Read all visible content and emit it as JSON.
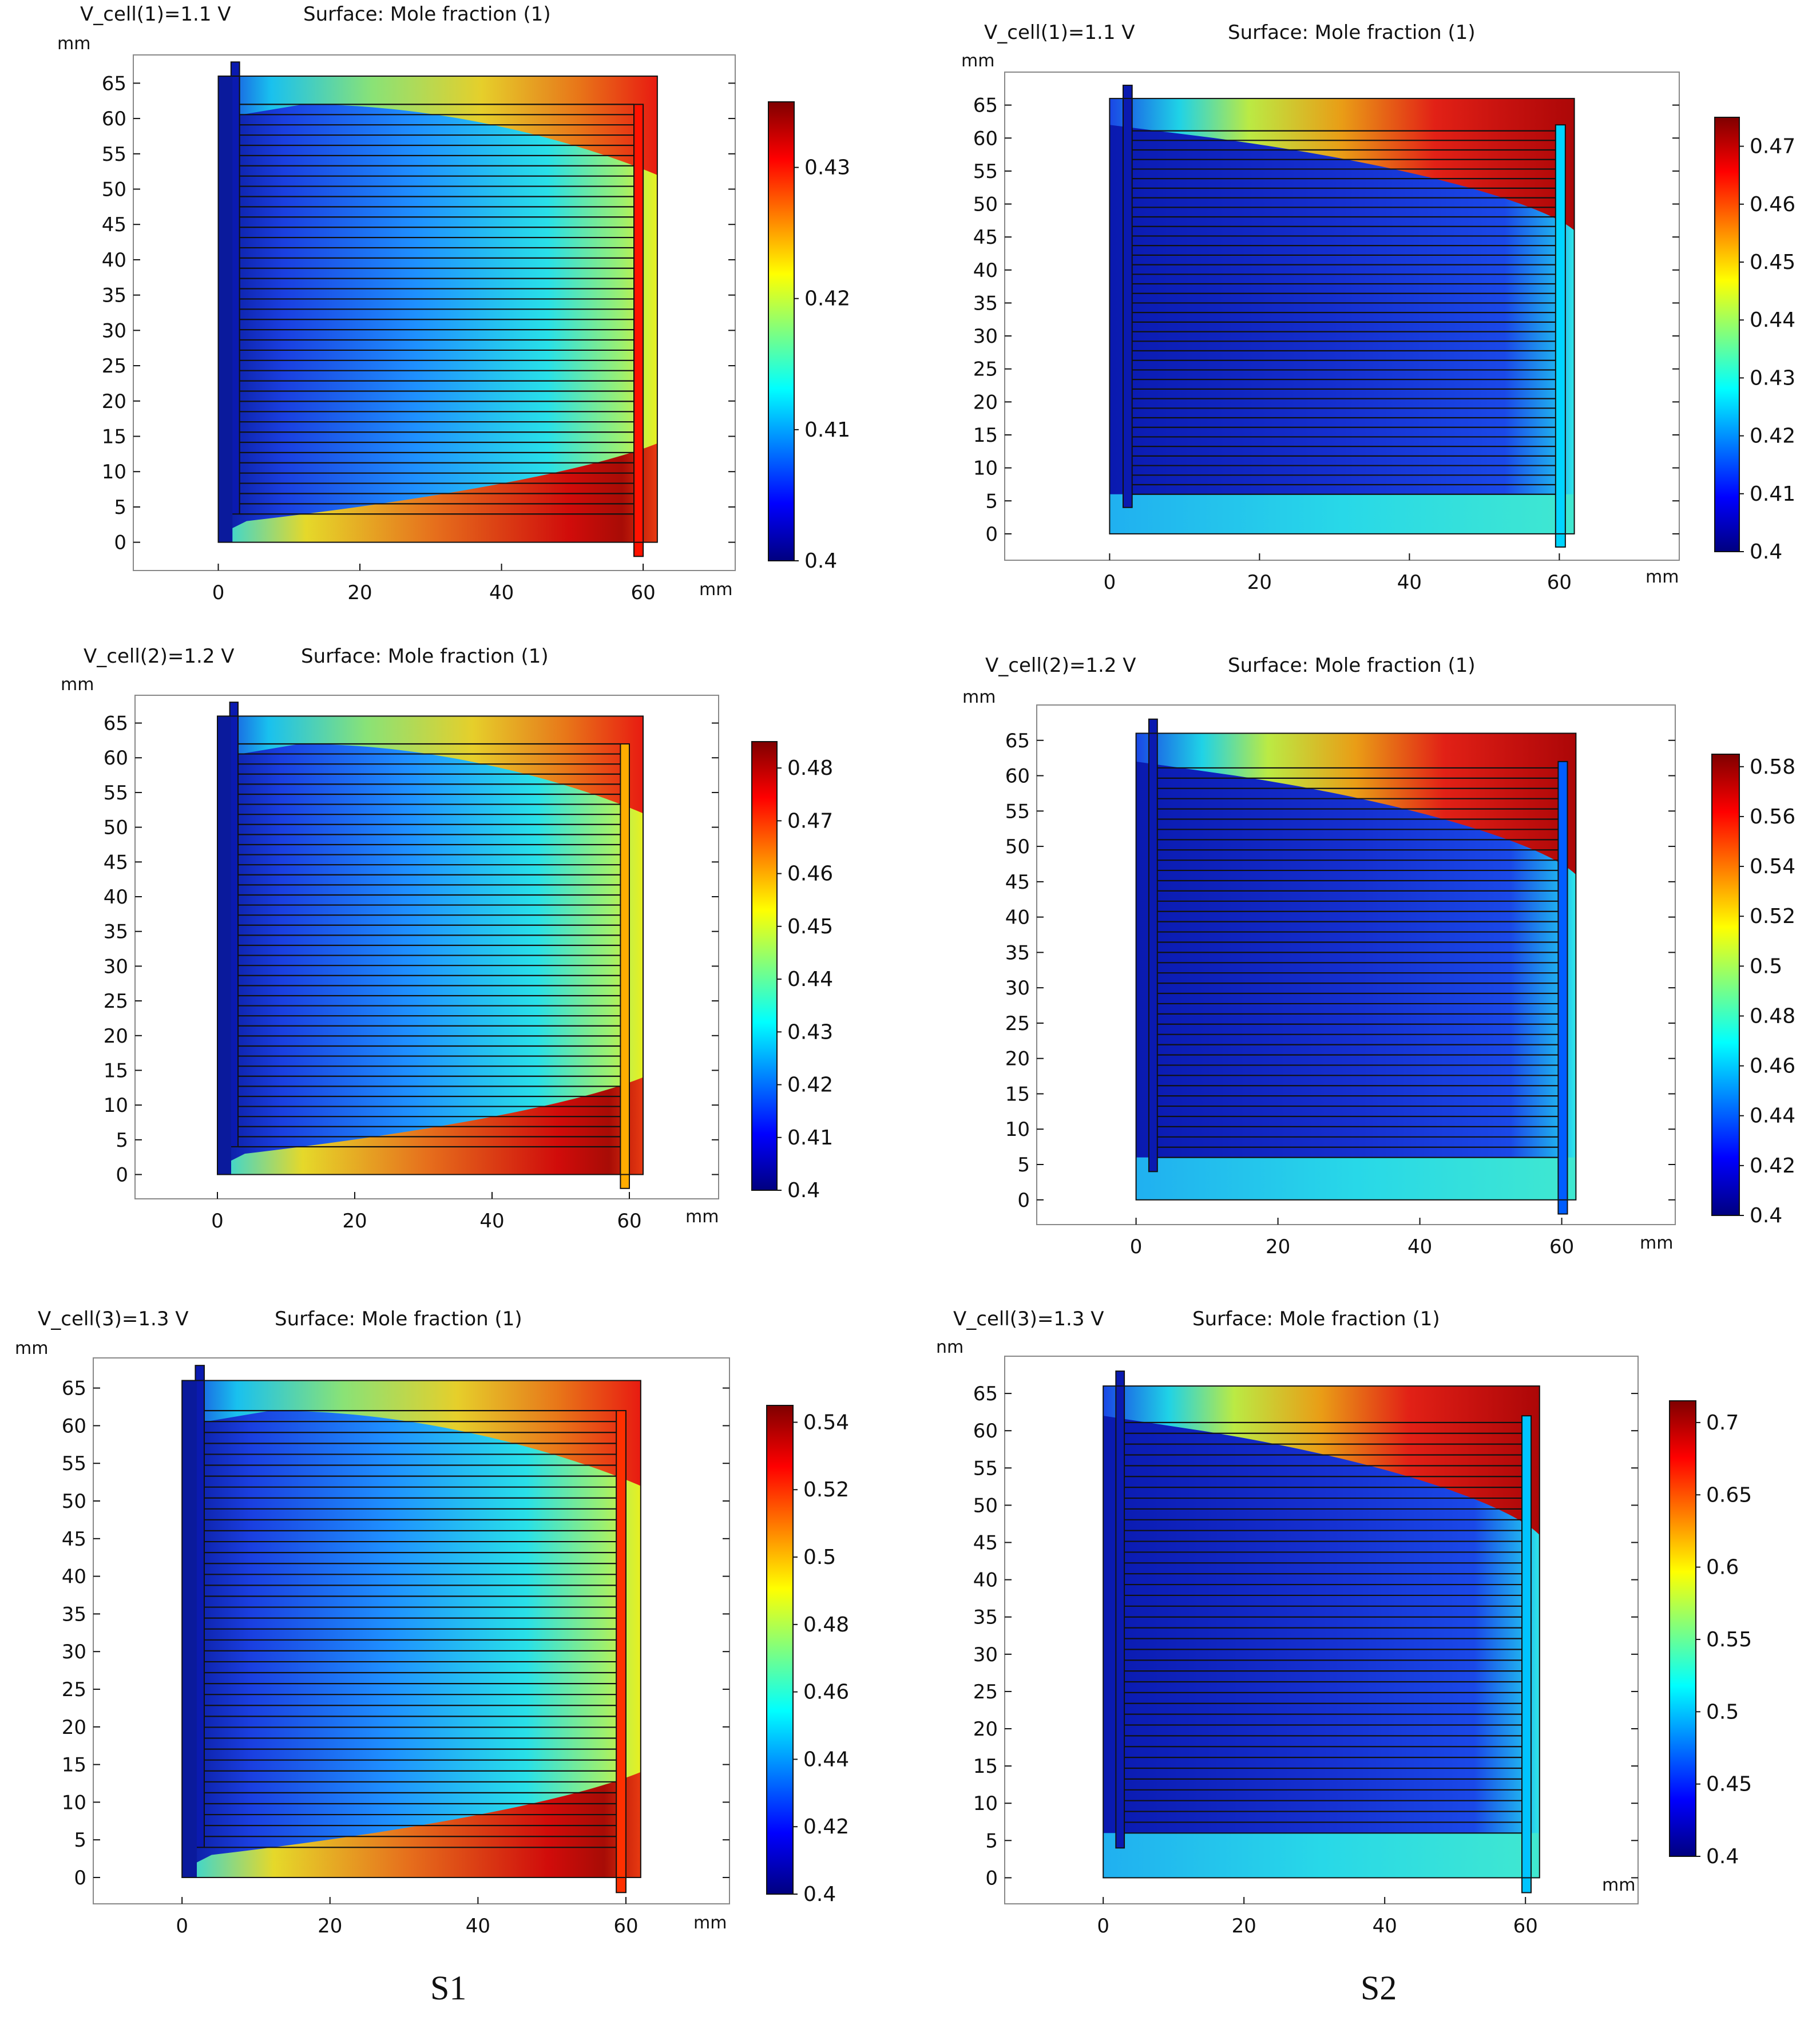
{
  "figure": {
    "column_labels": [
      "S1",
      "S2"
    ]
  },
  "colormap": [
    "#00007f",
    "#0000ff",
    "#007fff",
    "#00ffff",
    "#7fff7f",
    "#ffff00",
    "#ff7f00",
    "#ff0000",
    "#7f0000"
  ],
  "chart_data": [
    {
      "type": "heatmap",
      "id": "s1-v11",
      "title_left": "V_cell(1)=1.1 V",
      "title_right": "Surface: Mole fraction (1)",
      "x_unit": "mm",
      "y_unit": "mm",
      "x_ticks": [
        0,
        20,
        40,
        60
      ],
      "y_ticks": [
        0,
        5,
        10,
        15,
        20,
        25,
        30,
        35,
        40,
        45,
        50,
        55,
        60,
        65
      ],
      "xlim": [
        -12,
        73
      ],
      "ylim": [
        -4,
        69
      ],
      "colorbar_min": 0.4,
      "colorbar_max": 0.435,
      "colorbar_ticks": [
        "0.4",
        "0.41",
        "0.42",
        "0.43"
      ],
      "colorbar_tick_values": [
        0.4,
        0.41,
        0.42,
        0.43
      ],
      "serpentine": false,
      "outlet_value": 0.43,
      "outlet_at": "right-bottom"
    },
    {
      "type": "heatmap",
      "id": "s2-v11",
      "title_left": "V_cell(1)=1.1 V",
      "title_right": "Surface: Mole fraction (1)",
      "x_unit": "mm",
      "y_unit": "mm",
      "x_ticks": [
        0,
        20,
        40,
        60
      ],
      "y_ticks": [
        0,
        5,
        10,
        15,
        20,
        25,
        30,
        35,
        40,
        45,
        50,
        55,
        60,
        65
      ],
      "xlim": [
        -14,
        76
      ],
      "ylim": [
        -4,
        70
      ],
      "colorbar_min": 0.4,
      "colorbar_max": 0.475,
      "colorbar_ticks": [
        "0.4",
        "0.41",
        "0.42",
        "0.43",
        "0.44",
        "0.45",
        "0.46",
        "0.47"
      ],
      "colorbar_tick_values": [
        0.4,
        0.41,
        0.42,
        0.43,
        0.44,
        0.45,
        0.46,
        0.47
      ],
      "serpentine": true,
      "outlet_value": 0.425,
      "outlet_at": "right-bottom"
    },
    {
      "type": "heatmap",
      "id": "s1-v12",
      "title_left": "V_cell(2)=1.2 V",
      "title_right": "Surface: Mole fraction (1)",
      "x_unit": "mm",
      "y_unit": "mm",
      "x_ticks": [
        0,
        20,
        40,
        60
      ],
      "y_ticks": [
        0,
        5,
        10,
        15,
        20,
        25,
        30,
        35,
        40,
        45,
        50,
        55,
        60,
        65
      ],
      "xlim": [
        -12,
        73
      ],
      "ylim": [
        -3.5,
        69
      ],
      "colorbar_min": 0.4,
      "colorbar_max": 0.485,
      "colorbar_ticks": [
        "0.4",
        "0.41",
        "0.42",
        "0.43",
        "0.44",
        "0.45",
        "0.46",
        "0.47",
        "0.48"
      ],
      "colorbar_tick_values": [
        0.4,
        0.41,
        0.42,
        0.43,
        0.44,
        0.45,
        0.46,
        0.47,
        0.48
      ],
      "serpentine": false,
      "outlet_value": 0.46,
      "outlet_at": "right-bottom"
    },
    {
      "type": "heatmap",
      "id": "s2-v12",
      "title_left": "V_cell(2)=1.2 V",
      "title_right": "Surface: Mole fraction (1)",
      "x_unit": "mm",
      "y_unit": "mm",
      "x_ticks": [
        0,
        20,
        40,
        60
      ],
      "y_ticks": [
        0,
        5,
        10,
        15,
        20,
        25,
        30,
        35,
        40,
        45,
        50,
        55,
        60,
        65
      ],
      "xlim": [
        -14,
        76
      ],
      "ylim": [
        -3.5,
        70
      ],
      "colorbar_min": 0.4,
      "colorbar_max": 0.585,
      "colorbar_ticks": [
        "0.4",
        "0.42",
        "0.44",
        "0.46",
        "0.48",
        "0.5",
        "0.52",
        "0.54",
        "0.56",
        "0.58"
      ],
      "colorbar_tick_values": [
        0.4,
        0.42,
        0.44,
        0.46,
        0.48,
        0.5,
        0.52,
        0.54,
        0.56,
        0.58
      ],
      "serpentine": true,
      "outlet_value": 0.44,
      "outlet_at": "right-bottom"
    },
    {
      "type": "heatmap",
      "id": "s1-v13",
      "title_left": "V_cell(3)=1.3 V",
      "title_right": "Surface: Mole fraction (1)",
      "x_unit": "mm",
      "y_unit": "mm",
      "x_ticks": [
        0,
        20,
        40,
        60
      ],
      "y_ticks": [
        0,
        5,
        10,
        15,
        20,
        25,
        30,
        35,
        40,
        45,
        50,
        55,
        60,
        65
      ],
      "xlim": [
        -12,
        74
      ],
      "ylim": [
        -3.5,
        69
      ],
      "colorbar_min": 0.4,
      "colorbar_max": 0.545,
      "colorbar_ticks": [
        "0.4",
        "0.42",
        "0.44",
        "0.46",
        "0.48",
        "0.5",
        "0.52",
        "0.54"
      ],
      "colorbar_tick_values": [
        0.4,
        0.42,
        0.44,
        0.46,
        0.48,
        0.5,
        0.52,
        0.54
      ],
      "serpentine": false,
      "outlet_value": 0.52,
      "outlet_at": "right-bottom"
    },
    {
      "type": "heatmap",
      "id": "s2-v13",
      "title_left": "V_cell(3)=1.3 V",
      "title_right": "Surface: Mole fraction (1)",
      "x_unit": "mm",
      "y_unit": "nm",
      "x_ticks": [
        0,
        20,
        40,
        60
      ],
      "y_ticks": [
        0,
        5,
        10,
        15,
        20,
        25,
        30,
        35,
        40,
        45,
        50,
        55,
        60,
        65
      ],
      "xlim": [
        -14,
        76
      ],
      "ylim": [
        -3.5,
        70
      ],
      "colorbar_min": 0.4,
      "colorbar_max": 0.715,
      "colorbar_ticks": [
        "0.4",
        "0.45",
        "0.5",
        "0.55",
        "0.6",
        "0.65",
        "0.7"
      ],
      "colorbar_tick_values": [
        0.4,
        0.45,
        0.5,
        0.55,
        0.6,
        0.65,
        0.7
      ],
      "serpentine": true,
      "outlet_value": 0.5,
      "outlet_at": "right-bottom"
    }
  ]
}
